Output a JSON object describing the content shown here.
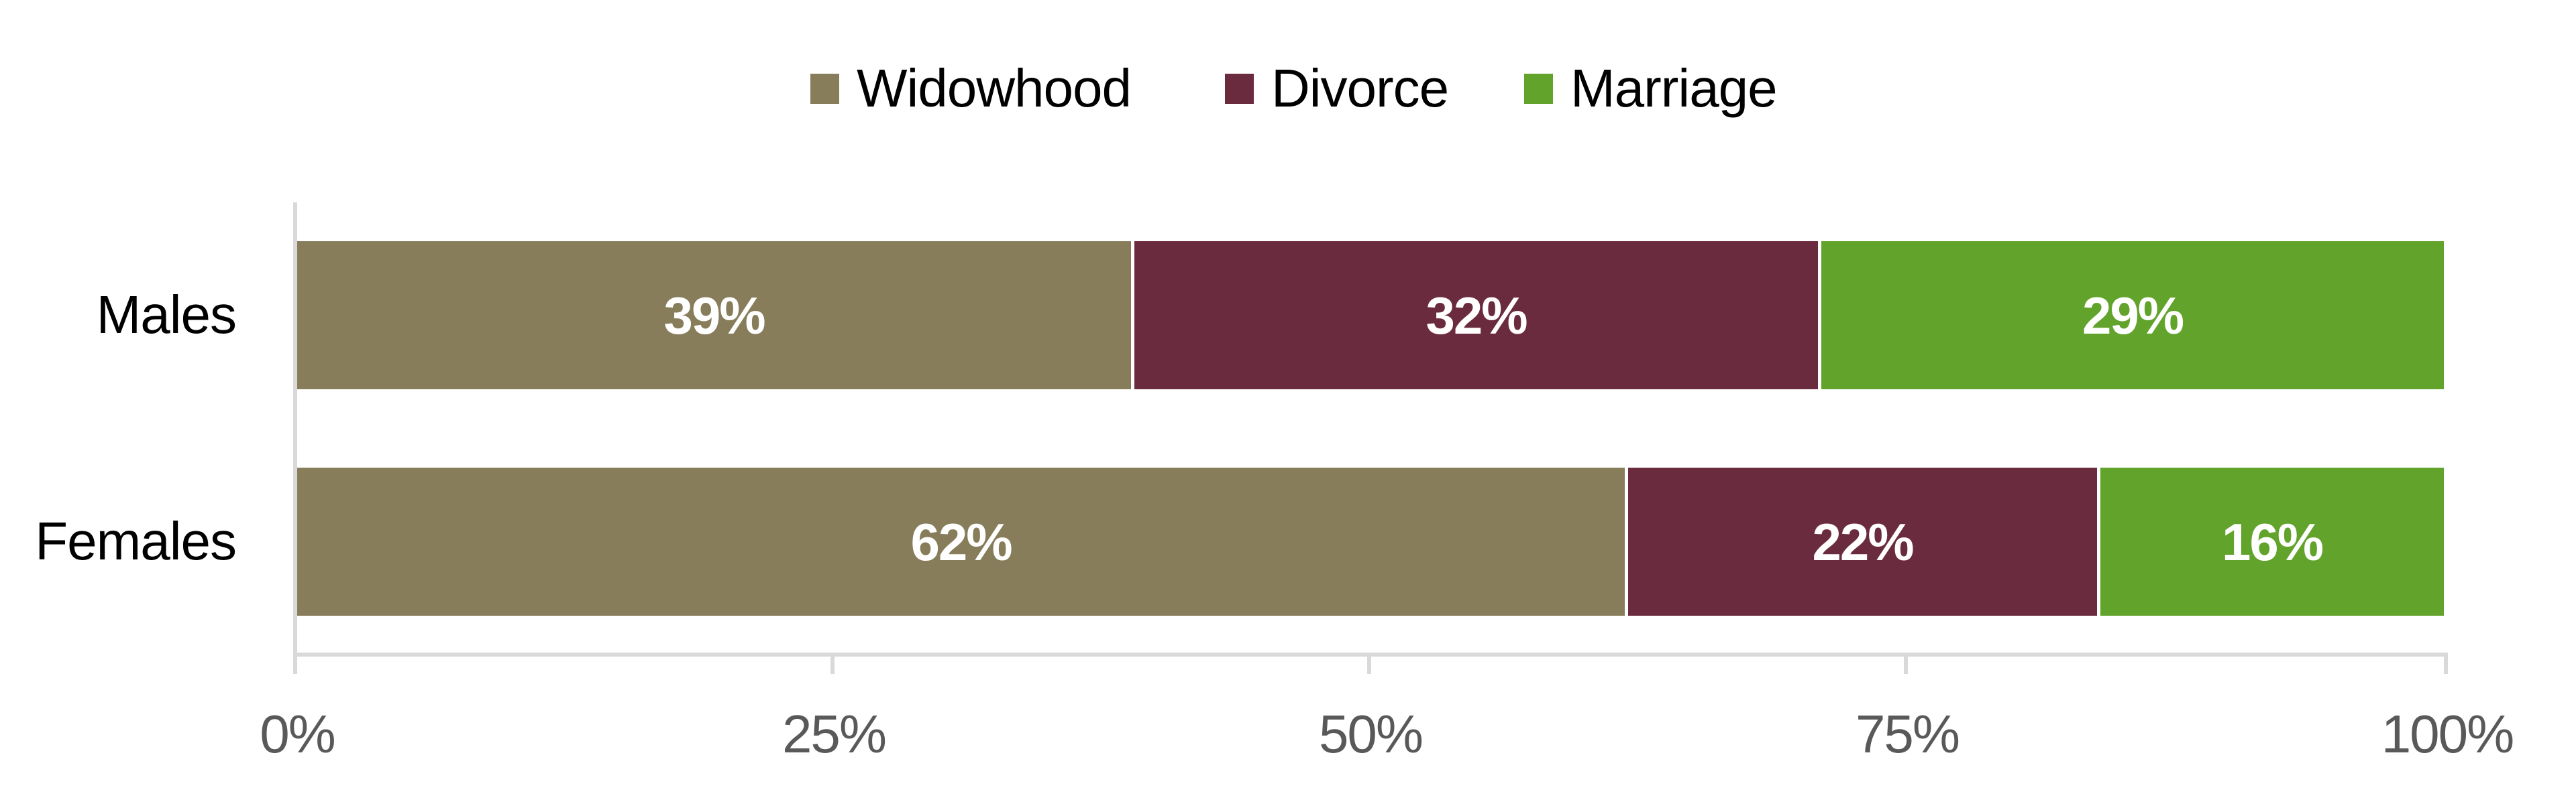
{
  "chart_data": {
    "type": "bar",
    "orientation": "horizontal",
    "stacked": "percent",
    "title": "",
    "categories": [
      "Males",
      "Females"
    ],
    "series": [
      {
        "name": "Widowhood",
        "color": "#877d5a",
        "values": [
          39,
          62
        ]
      },
      {
        "name": "Divorce",
        "color": "#6b2b3e",
        "values": [
          32,
          22
        ]
      },
      {
        "name": "Marriage",
        "color": "#62a32b",
        "values": [
          29,
          16
        ]
      }
    ],
    "data_labels": {
      "Males": [
        "39%",
        "32%",
        "29%"
      ],
      "Females": [
        "62%",
        "22%",
        "16%"
      ]
    },
    "xlabel": "",
    "ylabel": "",
    "xlim": [
      0,
      100
    ],
    "x_ticks": [
      "0%",
      "25%",
      "50%",
      "75%",
      "100%"
    ],
    "grid": false,
    "legend_position": "top"
  },
  "legend": {
    "items": [
      {
        "label": "Widowhood",
        "color": "#877d5a"
      },
      {
        "label": "Divorce",
        "color": "#6b2b3e"
      },
      {
        "label": "Marriage",
        "color": "#62a32b"
      }
    ]
  },
  "axis": {
    "x_ticks": [
      "0%",
      "25%",
      "50%",
      "75%",
      "100%"
    ],
    "categories": [
      "Males",
      "Females"
    ]
  },
  "bars": {
    "males": {
      "label": "Males",
      "segments": [
        {
          "value": 39,
          "label": "39%"
        },
        {
          "value": 32,
          "label": "32%"
        },
        {
          "value": 29,
          "label": "29%"
        }
      ]
    },
    "females": {
      "label": "Females",
      "segments": [
        {
          "value": 62,
          "label": "62%"
        },
        {
          "value": 22,
          "label": "22%"
        },
        {
          "value": 16,
          "label": "16%"
        }
      ]
    }
  },
  "colors": {
    "widowhood": "#877d5a",
    "divorce": "#6b2b3e",
    "marriage": "#62a32b",
    "axis_line": "#d9d9d9",
    "tick_label": "#595959"
  }
}
